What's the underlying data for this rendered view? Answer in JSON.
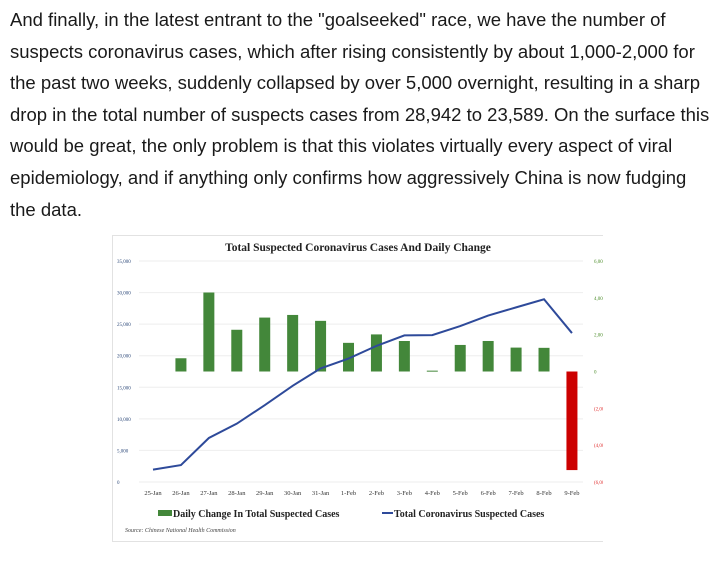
{
  "article": {
    "paragraph": "And finally, in the latest entrant to the \"goalseeked\" race, we have the number of suspects coronavirus cases, which after rising consistently by about 1,000-2,000 for the past two weeks, suddenly collapsed by over 5,000 overnight, resulting in a sharp drop in the total number of suspects cases from 28,942 to 23,589. On the surface this would be great, the only problem is that this violates virtually every aspect of viral epidemiology, and if anything only confirms how aggressively China is now fudging the data."
  },
  "chart_data": {
    "type": "bar+line",
    "title": "Total Suspected Coronavirus Cases And Daily Change",
    "source": "Source: Chinese National Health Commission",
    "categories": [
      "25-Jan",
      "26-Jan",
      "27-Jan",
      "28-Jan",
      "29-Jan",
      "30-Jan",
      "31-Jan",
      "1-Feb",
      "2-Feb",
      "3-Feb",
      "4-Feb",
      "5-Feb",
      "6-Feb",
      "7-Feb",
      "8-Feb",
      "9-Feb"
    ],
    "series": [
      {
        "name": "Daily Change In Total Suspected Cases",
        "type": "bar",
        "axis": "right",
        "values": [
          null,
          719,
          4289,
          2266,
          2928,
          3071,
          2750,
          1556,
          2014,
          1656,
          46,
          1442,
          1657,
          1298,
          1285,
          -5353
        ]
      },
      {
        "name": "Total Coronavirus Suspected Cases",
        "type": "line",
        "axis": "left",
        "values": [
          1965,
          2684,
          6973,
          9239,
          12167,
          15238,
          17988,
          19544,
          21558,
          23214,
          23260,
          24702,
          26359,
          27657,
          28942,
          23589
        ]
      }
    ],
    "left_axis": {
      "ylim": [
        0,
        35000
      ],
      "ticks": [
        "0",
        "5,000",
        "10,000",
        "15,000",
        "20,000",
        "25,000",
        "30,000",
        "35,000"
      ]
    },
    "right_axis": {
      "ylim": [
        -6000,
        6000
      ],
      "ticks": [
        "(6,000)",
        "(4,000)",
        "(2,000)",
        "0",
        "2,000",
        "4,000",
        "6,000"
      ]
    },
    "colors": {
      "positive_bar": "#43873a",
      "negative_bar": "#cc0000",
      "line": "#2e4a9a",
      "left_ticks": "#2e4a7a",
      "right_pos_ticks": "#4c8c2a",
      "right_neg_ticks": "#e03030"
    },
    "grid": true,
    "legend": "bottom"
  }
}
